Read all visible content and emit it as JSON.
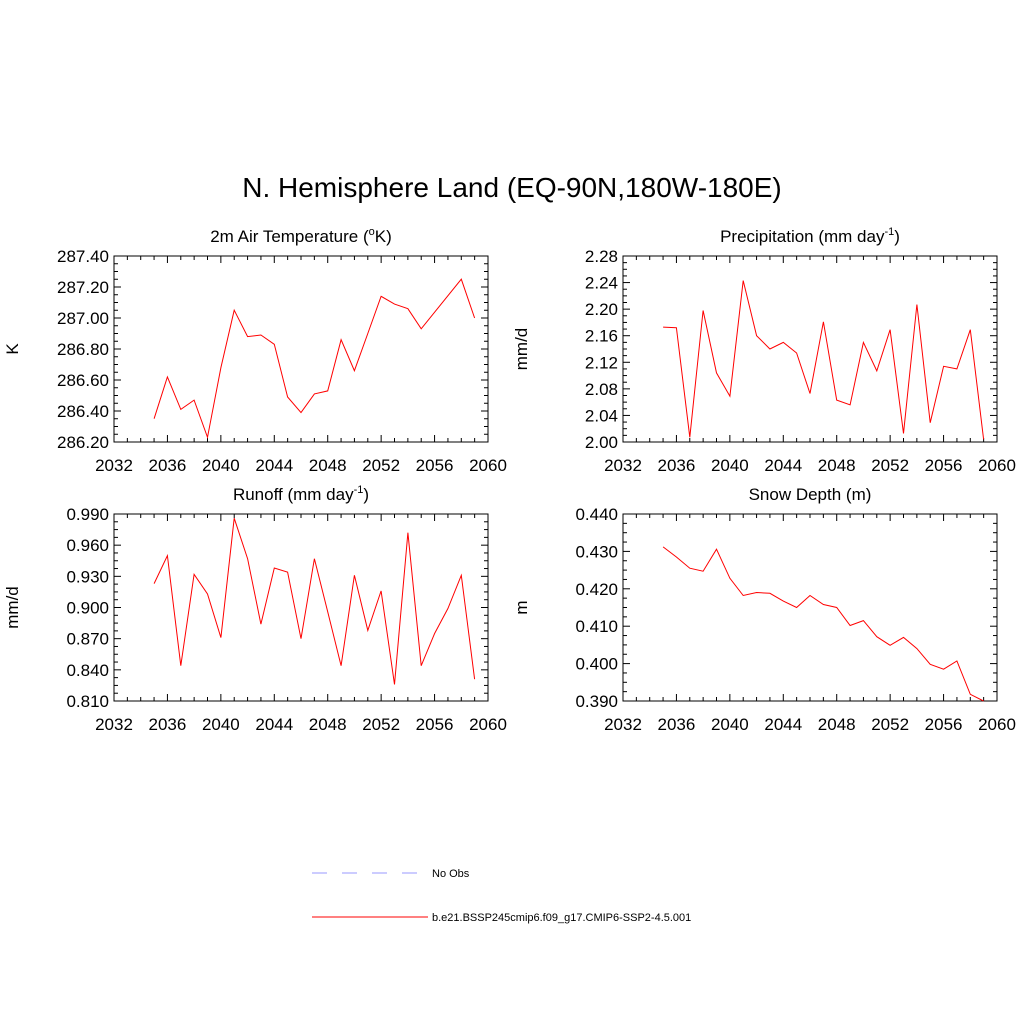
{
  "title": "N. Hemisphere Land (EQ-90N,180W-180E)",
  "chart_data": [
    {
      "type": "line",
      "title": "2m Air Temperature (",
      "title_sup": "o",
      "title_after": "K)",
      "ylabel": "K",
      "xlim": [
        2032,
        2060
      ],
      "ylim": [
        286.2,
        287.4
      ],
      "xticks": [
        "2032",
        "2036",
        "2040",
        "2044",
        "2048",
        "2052",
        "2056",
        "2060"
      ],
      "yticks": [
        "286.20",
        "286.40",
        "286.60",
        "286.80",
        "287.00",
        "287.20",
        "287.40"
      ],
      "series": [
        {
          "color": "#ff0000",
          "x": [
            2035,
            2036,
            2037,
            2038,
            2039,
            2040,
            2041,
            2042,
            2043,
            2044,
            2045,
            2046,
            2047,
            2048,
            2049,
            2050,
            2051,
            2052,
            2053,
            2054,
            2055,
            2058,
            2059
          ],
          "y": [
            286.35,
            286.62,
            286.41,
            286.47,
            286.23,
            286.68,
            287.05,
            286.88,
            286.89,
            286.83,
            286.49,
            286.39,
            286.51,
            286.53,
            286.86,
            286.66,
            286.9,
            287.14,
            287.09,
            287.06,
            286.93,
            287.25,
            287.0
          ]
        }
      ]
    },
    {
      "type": "line",
      "title": "Precipitation (mm day",
      "title_sup": "-1",
      "title_after": ")",
      "ylabel": "mm/d",
      "xlim": [
        2032,
        2060
      ],
      "ylim": [
        2.0,
        2.28
      ],
      "xticks": [
        "2032",
        "2036",
        "2040",
        "2044",
        "2048",
        "2052",
        "2056",
        "2060"
      ],
      "yticks": [
        "2.00",
        "2.04",
        "2.08",
        "2.12",
        "2.16",
        "2.20",
        "2.24",
        "2.28"
      ],
      "series": [
        {
          "color": "#ff0000",
          "x": [
            2035,
            2036,
            2037,
            2038,
            2039,
            2040,
            2041,
            2042,
            2043,
            2044,
            2045,
            2046,
            2047,
            2048,
            2049,
            2050,
            2051,
            2052,
            2053,
            2054,
            2055,
            2056,
            2057,
            2058,
            2059
          ],
          "y": [
            2.173,
            2.172,
            2.007,
            2.198,
            2.104,
            2.069,
            2.243,
            2.16,
            2.14,
            2.15,
            2.134,
            2.073,
            2.181,
            2.063,
            2.056,
            2.15,
            2.107,
            2.169,
            2.013,
            2.207,
            2.029,
            2.114,
            2.11,
            2.169,
            2.004
          ]
        }
      ]
    },
    {
      "type": "line",
      "title": "Runoff (mm day",
      "title_sup": "-1",
      "title_after": ")",
      "ylabel": "mm/d",
      "xlim": [
        2032,
        2060
      ],
      "ylim": [
        0.81,
        0.99
      ],
      "xticks": [
        "2032",
        "2036",
        "2040",
        "2044",
        "2048",
        "2052",
        "2056",
        "2060"
      ],
      "yticks": [
        "0.810",
        "0.840",
        "0.870",
        "0.900",
        "0.930",
        "0.960",
        "0.990"
      ],
      "series": [
        {
          "color": "#ff0000",
          "x": [
            2035,
            2036,
            2037,
            2038,
            2039,
            2040,
            2041,
            2042,
            2043,
            2044,
            2045,
            2046,
            2047,
            2048,
            2049,
            2050,
            2051,
            2052,
            2053,
            2054,
            2055,
            2056,
            2057,
            2058,
            2059
          ],
          "y": [
            0.923,
            0.95,
            0.844,
            0.932,
            0.913,
            0.871,
            0.986,
            0.947,
            0.884,
            0.938,
            0.934,
            0.87,
            0.947,
            0.896,
            0.844,
            0.931,
            0.878,
            0.916,
            0.826,
            0.972,
            0.844,
            0.875,
            0.899,
            0.931,
            0.831
          ]
        }
      ]
    },
    {
      "type": "line",
      "title": "Snow Depth (m)",
      "title_sup": "",
      "title_after": "",
      "ylabel": "m",
      "xlim": [
        2032,
        2060
      ],
      "ylim": [
        0.39,
        0.44
      ],
      "xticks": [
        "2032",
        "2036",
        "2040",
        "2044",
        "2048",
        "2052",
        "2056",
        "2060"
      ],
      "yticks": [
        "0.390",
        "0.400",
        "0.410",
        "0.420",
        "0.430",
        "0.440"
      ],
      "series": [
        {
          "color": "#ff0000",
          "x": [
            2035,
            2036,
            2037,
            2038,
            2039,
            2040,
            2041,
            2042,
            2043,
            2044,
            2045,
            2046,
            2047,
            2048,
            2049,
            2050,
            2051,
            2052,
            2053,
            2054,
            2055,
            2056,
            2057,
            2058,
            2059
          ],
          "y": [
            0.4312,
            0.4285,
            0.4255,
            0.4247,
            0.4306,
            0.4228,
            0.4182,
            0.419,
            0.4188,
            0.4167,
            0.415,
            0.4182,
            0.4158,
            0.415,
            0.4102,
            0.4115,
            0.4072,
            0.4049,
            0.407,
            0.404,
            0.3998,
            0.3985,
            0.4007,
            0.3918,
            0.39
          ]
        }
      ]
    }
  ],
  "legend": {
    "items": [
      {
        "label": "No Obs",
        "color": "#9999ff",
        "dash": "15,15"
      },
      {
        "label": "b.e21.BSSP245cmip6.f09_g17.CMIP6-SSP2-4.5.001",
        "color": "#ff0000",
        "dash": ""
      }
    ]
  }
}
